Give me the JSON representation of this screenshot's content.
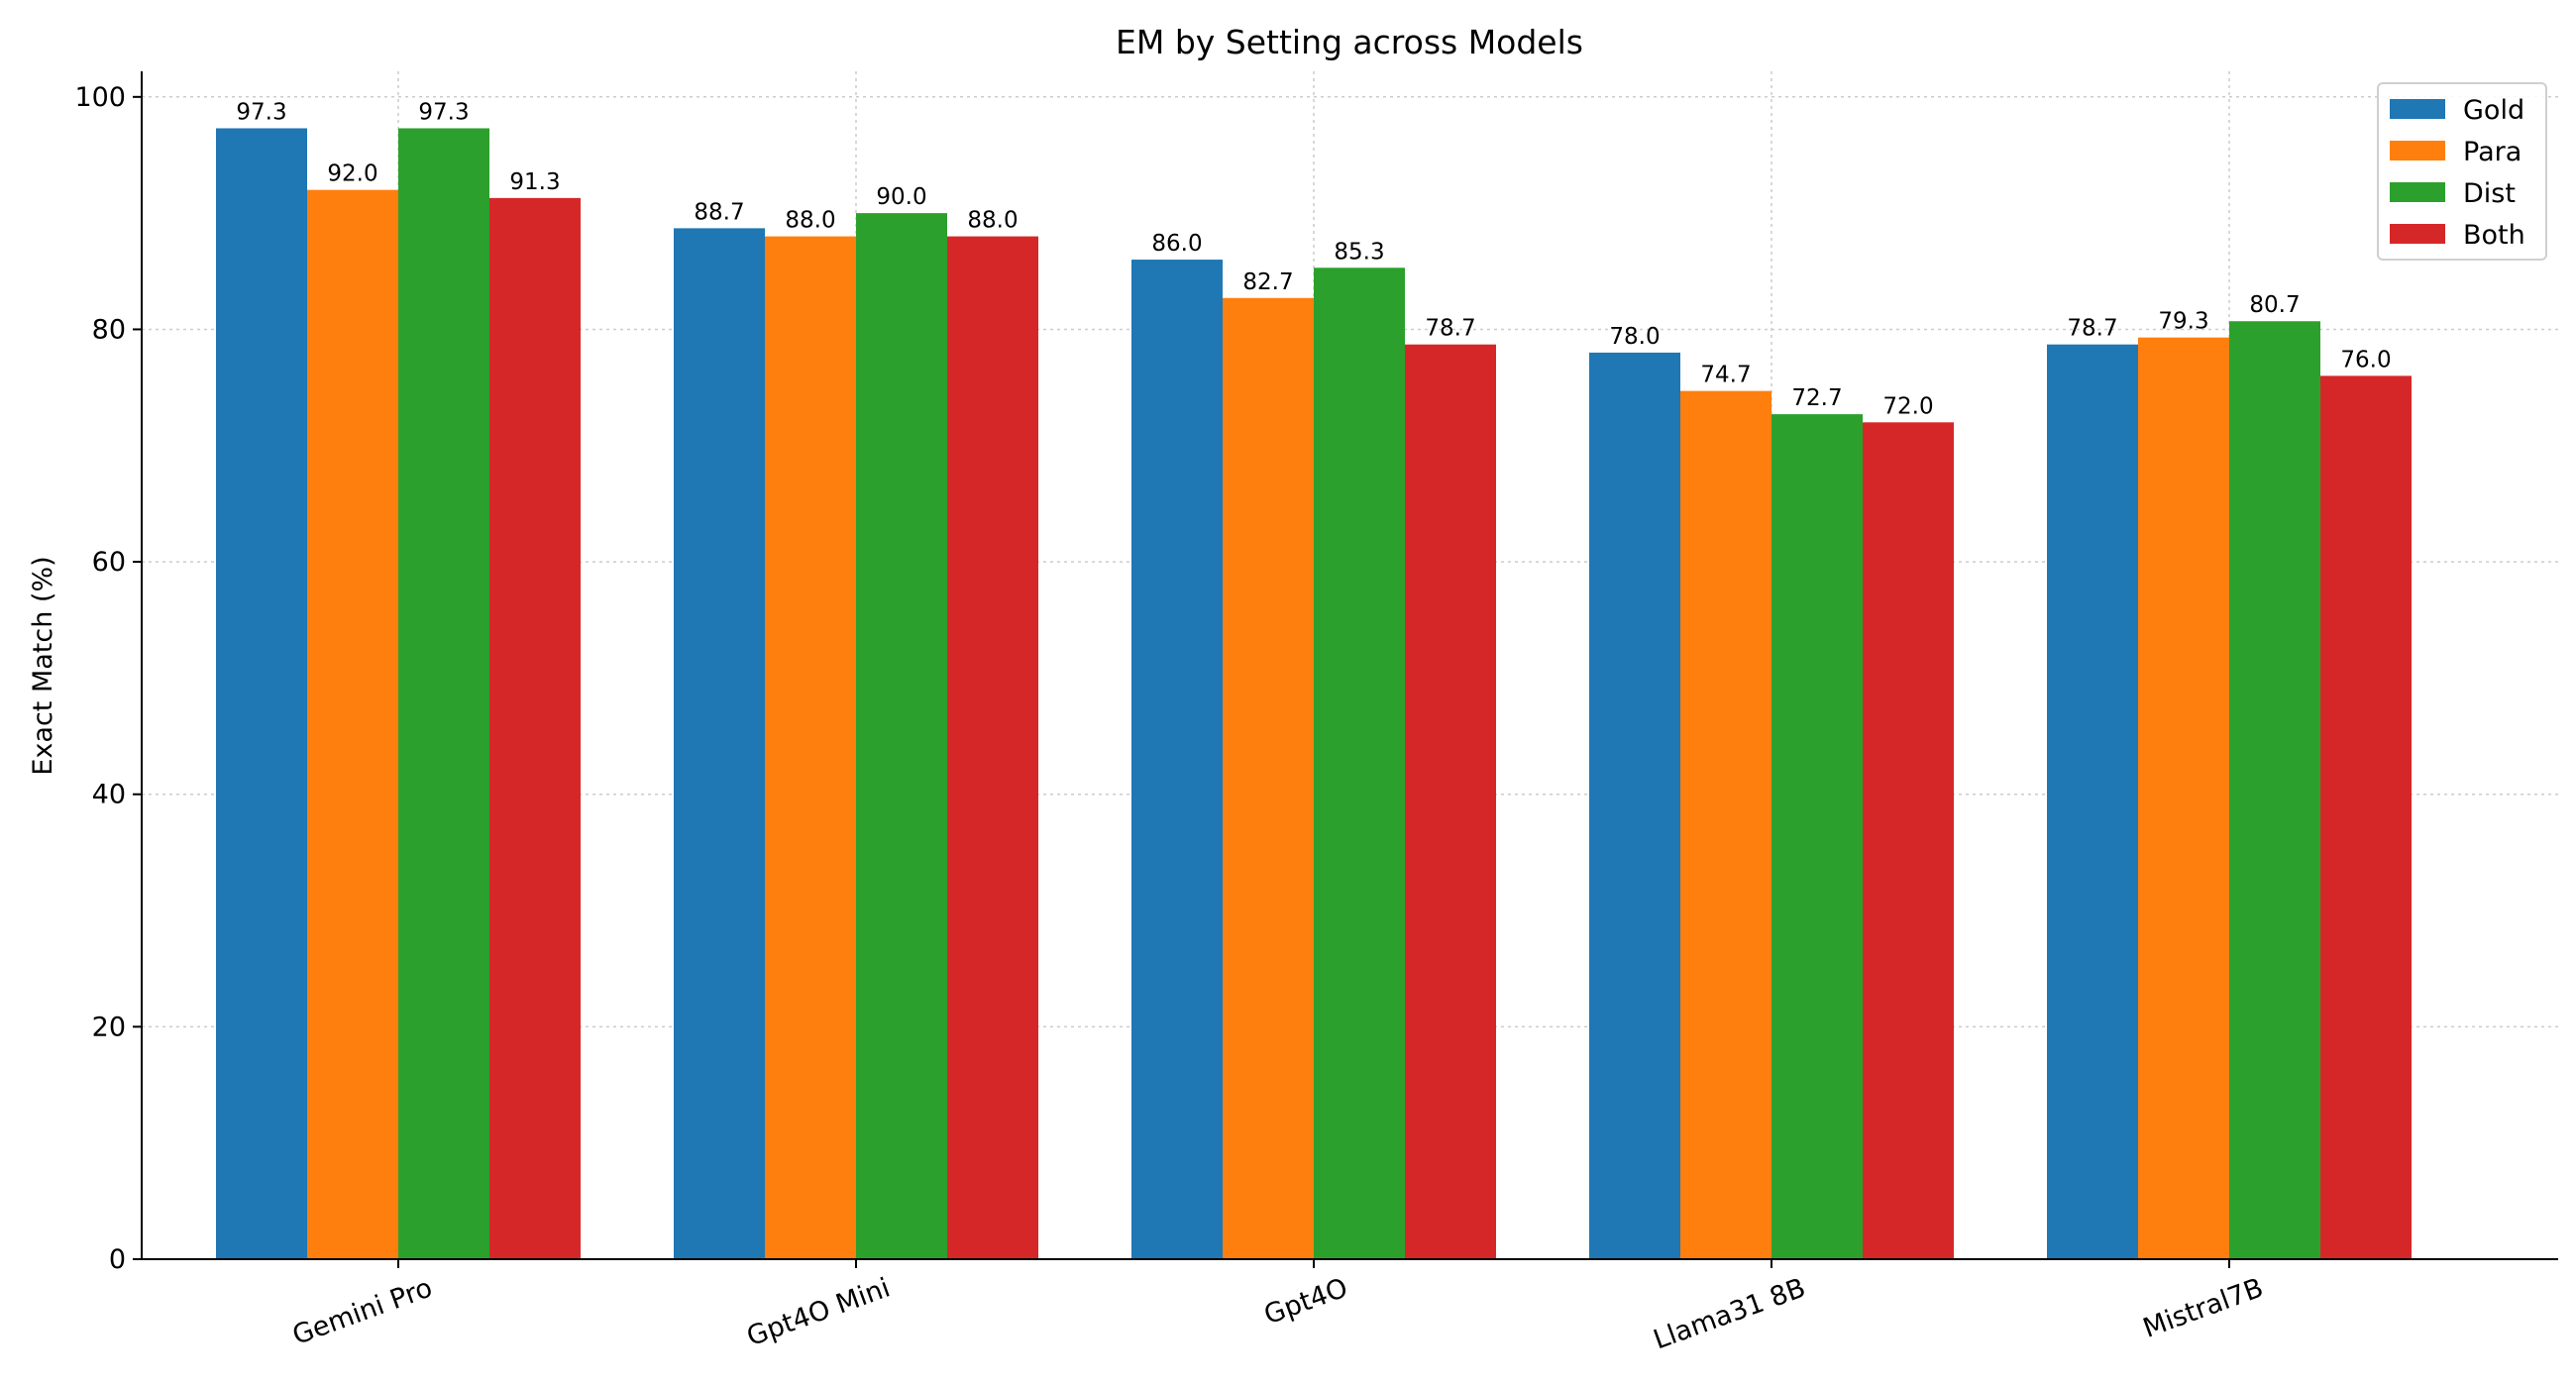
{
  "chart_data": {
    "type": "bar",
    "title": "EM by Setting across Models",
    "xlabel": "",
    "ylabel": "Exact Match (%)",
    "ylim": [
      0,
      102.2
    ],
    "yticks": [
      0,
      20,
      40,
      60,
      80,
      100
    ],
    "grid": true,
    "legend_position": "top-right",
    "categories": [
      "Gemini Pro",
      "Gpt4O Mini",
      "Gpt4O",
      "Llama31 8B",
      "Mistral7B"
    ],
    "series": [
      {
        "name": "Gold",
        "color": "#1f77b4",
        "values": [
          97.3,
          88.7,
          86.0,
          78.0,
          78.7
        ]
      },
      {
        "name": "Para",
        "color": "#ff7f0e",
        "values": [
          92.0,
          88.0,
          82.7,
          74.7,
          79.3
        ]
      },
      {
        "name": "Dist",
        "color": "#2ca02c",
        "values": [
          97.3,
          90.0,
          85.3,
          72.7,
          80.7
        ]
      },
      {
        "name": "Both",
        "color": "#d62728",
        "values": [
          91.3,
          88.0,
          78.7,
          72.0,
          76.0
        ]
      }
    ]
  }
}
